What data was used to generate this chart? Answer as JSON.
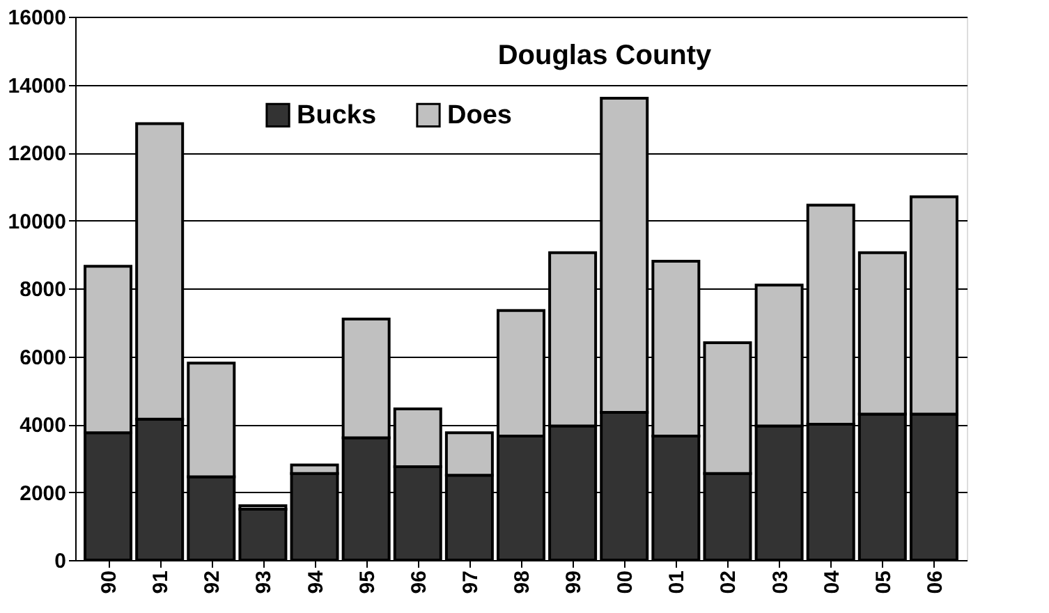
{
  "chart_data": {
    "type": "bar",
    "title": "Douglas County",
    "stacked": true,
    "categories": [
      "90",
      "91",
      "92",
      "93",
      "94",
      "95",
      "96",
      "97",
      "98",
      "99",
      "00",
      "01",
      "02",
      "03",
      "04",
      "05",
      "06"
    ],
    "series": [
      {
        "name": "Bucks",
        "color": "#333333",
        "values": [
          3750,
          4150,
          2450,
          1500,
          2550,
          3600,
          2750,
          2500,
          3650,
          3950,
          4350,
          3650,
          2550,
          3950,
          4000,
          4300,
          4300
        ]
      },
      {
        "name": "Does",
        "color": "#c0c0c0",
        "values": [
          4900,
          8700,
          3350,
          100,
          250,
          3500,
          1700,
          1250,
          3700,
          5100,
          9250,
          5150,
          3850,
          4150,
          6450,
          4750,
          6400
        ]
      }
    ],
    "ylim": [
      0,
      16000
    ],
    "yticks": [
      0,
      2000,
      4000,
      6000,
      8000,
      10000,
      12000,
      14000,
      16000
    ],
    "grid": "y",
    "legend": "top"
  }
}
